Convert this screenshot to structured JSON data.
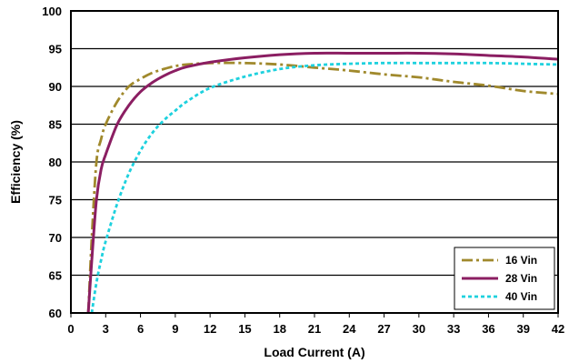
{
  "chart_data": {
    "type": "line",
    "title": "",
    "xlabel": "Load Current (A)",
    "ylabel": "Efficiency (%)",
    "xlim": [
      0,
      42
    ],
    "ylim": [
      60,
      100
    ],
    "x_ticks": [
      0,
      3,
      6,
      9,
      12,
      15,
      18,
      21,
      24,
      27,
      30,
      33,
      36,
      39,
      42
    ],
    "y_ticks": [
      60,
      65,
      70,
      75,
      80,
      85,
      90,
      95,
      100
    ],
    "grid": "horizontal",
    "legend_position": "bottom-right",
    "series": [
      {
        "name": "16 Vin",
        "color": "#a0892c",
        "style": "dash-dot",
        "points": [
          [
            1.5,
            60
          ],
          [
            1.8,
            70
          ],
          [
            2.2,
            80
          ],
          [
            2.6,
            83
          ],
          [
            3,
            85
          ],
          [
            4,
            88
          ],
          [
            5,
            90
          ],
          [
            6,
            91
          ],
          [
            7,
            91.8
          ],
          [
            8,
            92.3
          ],
          [
            9,
            92.7
          ],
          [
            10,
            92.9
          ],
          [
            12,
            93.1
          ],
          [
            15,
            93.1
          ],
          [
            18,
            92.9
          ],
          [
            21,
            92.5
          ],
          [
            24,
            92.1
          ],
          [
            27,
            91.6
          ],
          [
            30,
            91.2
          ],
          [
            33,
            90.6
          ],
          [
            36,
            90.1
          ],
          [
            39,
            89.4
          ],
          [
            42,
            89
          ]
        ]
      },
      {
        "name": "28 Vin",
        "color": "#8b1e62",
        "style": "solid",
        "points": [
          [
            1.5,
            60
          ],
          [
            1.8,
            67
          ],
          [
            2.2,
            75
          ],
          [
            2.6,
            79
          ],
          [
            3,
            81
          ],
          [
            4,
            85
          ],
          [
            5,
            87.5
          ],
          [
            6,
            89.3
          ],
          [
            7,
            90.5
          ],
          [
            8,
            91.4
          ],
          [
            9,
            92.1
          ],
          [
            10,
            92.6
          ],
          [
            12,
            93.2
          ],
          [
            15,
            93.8
          ],
          [
            18,
            94.2
          ],
          [
            21,
            94.4
          ],
          [
            24,
            94.4
          ],
          [
            27,
            94.4
          ],
          [
            30,
            94.4
          ],
          [
            33,
            94.3
          ],
          [
            36,
            94.1
          ],
          [
            39,
            93.9
          ],
          [
            42,
            93.6
          ]
        ]
      },
      {
        "name": "40 Vin",
        "color": "#1ed1de",
        "style": "dotted",
        "points": [
          [
            1.8,
            60
          ],
          [
            2.2,
            64
          ],
          [
            2.6,
            67
          ],
          [
            3,
            69.5
          ],
          [
            4,
            74.5
          ],
          [
            5,
            78.5
          ],
          [
            6,
            81.5
          ],
          [
            7,
            83.8
          ],
          [
            8,
            85.5
          ],
          [
            9,
            86.8
          ],
          [
            10,
            88
          ],
          [
            12,
            89.8
          ],
          [
            15,
            91.3
          ],
          [
            18,
            92.3
          ],
          [
            21,
            92.8
          ],
          [
            24,
            93
          ],
          [
            27,
            93.1
          ],
          [
            30,
            93.1
          ],
          [
            33,
            93.1
          ],
          [
            36,
            93.1
          ],
          [
            39,
            93
          ],
          [
            42,
            92.9
          ]
        ]
      }
    ]
  }
}
